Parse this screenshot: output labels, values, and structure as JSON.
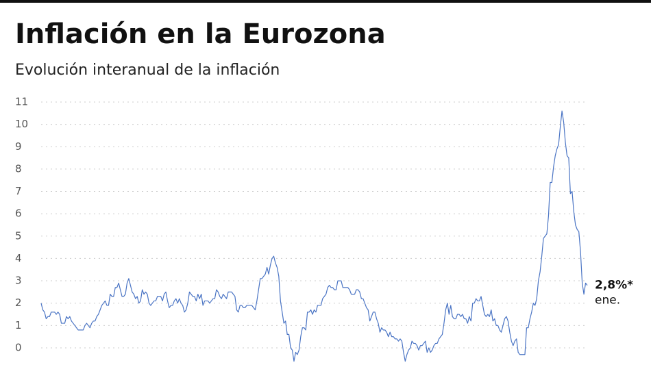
{
  "chart_data": {
    "type": "line",
    "title": "Inflación en la Eurozona",
    "subtitle": "Evolución interanual de la inflación",
    "color": "#4a74c4",
    "grid": true,
    "ylim": [
      -0.7,
      11
    ],
    "yticks": [
      0,
      1,
      2,
      3,
      4,
      5,
      6,
      7,
      8,
      9,
      10,
      11
    ],
    "last_value_label": "2,8%*",
    "last_period": "ene.",
    "values": [
      2.0,
      1.7,
      1.6,
      1.3,
      1.4,
      1.4,
      1.6,
      1.6,
      1.6,
      1.5,
      1.6,
      1.5,
      1.1,
      1.1,
      1.1,
      1.4,
      1.3,
      1.4,
      1.2,
      1.1,
      1.0,
      0.9,
      0.8,
      0.8,
      0.8,
      0.8,
      1.0,
      1.1,
      1.0,
      0.9,
      1.1,
      1.2,
      1.2,
      1.4,
      1.5,
      1.7,
      1.9,
      2.0,
      2.1,
      1.9,
      1.9,
      2.4,
      2.3,
      2.3,
      2.7,
      2.7,
      2.9,
      2.6,
      2.3,
      2.3,
      2.4,
      2.9,
      3.1,
      2.8,
      2.5,
      2.4,
      2.2,
      2.3,
      2.0,
      2.1,
      2.6,
      2.4,
      2.5,
      2.4,
      2.0,
      1.9,
      2.0,
      2.1,
      2.1,
      2.3,
      2.3,
      2.3,
      2.1,
      2.4,
      2.5,
      2.1,
      1.8,
      1.9,
      1.9,
      2.1,
      2.2,
      2.0,
      2.2,
      2.0,
      1.9,
      1.6,
      1.7,
      2.0,
      2.5,
      2.4,
      2.3,
      2.3,
      2.1,
      2.4,
      2.2,
      2.4,
      1.9,
      2.1,
      2.1,
      2.1,
      2.0,
      2.1,
      2.2,
      2.2,
      2.6,
      2.5,
      2.3,
      2.2,
      2.4,
      2.3,
      2.2,
      2.5,
      2.5,
      2.5,
      2.4,
      2.3,
      1.7,
      1.6,
      1.9,
      1.9,
      1.8,
      1.8,
      1.9,
      1.9,
      1.9,
      1.9,
      1.8,
      1.7,
      2.1,
      2.6,
      3.1,
      3.1,
      3.2,
      3.3,
      3.6,
      3.3,
      3.7,
      4.0,
      4.1,
      3.8,
      3.6,
      3.2,
      2.1,
      1.6,
      1.1,
      1.2,
      0.6,
      0.6,
      0.0,
      -0.1,
      -0.6,
      -0.2,
      -0.3,
      -0.1,
      0.5,
      0.9,
      0.9,
      0.8,
      1.6,
      1.6,
      1.7,
      1.5,
      1.7,
      1.6,
      1.9,
      1.9,
      1.9,
      2.2,
      2.3,
      2.4,
      2.7,
      2.8,
      2.7,
      2.7,
      2.6,
      2.6,
      3.0,
      3.0,
      3.0,
      2.7,
      2.7,
      2.7,
      2.7,
      2.6,
      2.4,
      2.4,
      2.4,
      2.6,
      2.6,
      2.5,
      2.2,
      2.2,
      2.0,
      1.8,
      1.7,
      1.2,
      1.4,
      1.6,
      1.6,
      1.3,
      1.1,
      0.7,
      0.9,
      0.8,
      0.8,
      0.7,
      0.5,
      0.7,
      0.5,
      0.5,
      0.4,
      0.4,
      0.3,
      0.4,
      0.3,
      -0.2,
      -0.6,
      -0.3,
      -0.1,
      0.0,
      0.3,
      0.2,
      0.2,
      0.1,
      -0.1,
      0.1,
      0.1,
      0.2,
      0.3,
      -0.2,
      0.0,
      -0.2,
      -0.1,
      0.1,
      0.2,
      0.2,
      0.4,
      0.5,
      0.6,
      1.1,
      1.7,
      2.0,
      1.5,
      1.9,
      1.4,
      1.3,
      1.3,
      1.5,
      1.5,
      1.4,
      1.5,
      1.3,
      1.3,
      1.1,
      1.4,
      1.2,
      2.0,
      2.0,
      2.2,
      2.1,
      2.1,
      2.3,
      1.9,
      1.5,
      1.4,
      1.5,
      1.4,
      1.7,
      1.2,
      1.3,
      1.0,
      1.0,
      0.8,
      0.7,
      1.0,
      1.3,
      1.4,
      1.2,
      0.7,
      0.3,
      0.1,
      0.3,
      0.4,
      -0.2,
      -0.3,
      -0.3,
      -0.3,
      -0.3,
      0.9,
      0.9,
      1.3,
      1.6,
      2.0,
      1.9,
      2.2,
      3.0,
      3.4,
      4.1,
      4.9,
      5.0,
      5.1,
      5.9,
      7.4,
      7.4,
      8.1,
      8.6,
      8.9,
      9.1,
      9.9,
      10.6,
      10.1,
      9.2,
      8.6,
      8.5,
      6.9,
      7.0,
      6.1,
      5.5,
      5.3,
      5.2,
      4.3,
      2.9,
      2.4,
      2.9,
      2.8
    ]
  }
}
